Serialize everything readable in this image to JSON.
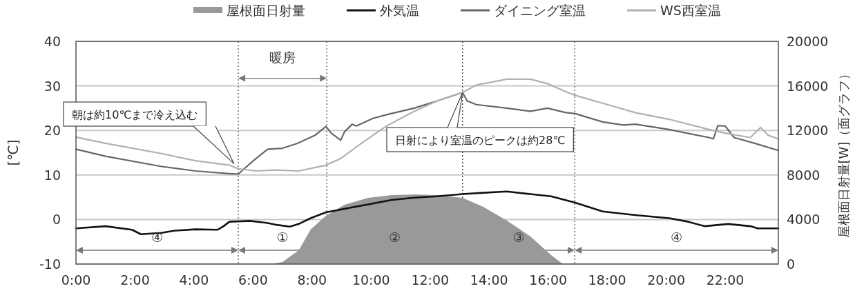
{
  "chart_data": {
    "type": "line",
    "ylabel": "[℃]",
    "y2label": "屋根面日射量[W]（面グラフ）",
    "xlim": [
      0,
      23.8
    ],
    "ylim": [
      -10,
      40
    ],
    "y2lim": [
      0,
      20000
    ],
    "xticks": [
      {
        "value": 0,
        "label": "0:00"
      },
      {
        "value": 2,
        "label": "2:00"
      },
      {
        "value": 4,
        "label": "4:00"
      },
      {
        "value": 6,
        "label": "6:00"
      },
      {
        "value": 8,
        "label": "8:00"
      },
      {
        "value": 10,
        "label": "10:00"
      },
      {
        "value": 12,
        "label": "12:00"
      },
      {
        "value": 14,
        "label": "14:00"
      },
      {
        "value": 16,
        "label": "16:00"
      },
      {
        "value": 18,
        "label": "18:00"
      },
      {
        "value": 20,
        "label": "20:00"
      },
      {
        "value": 22,
        "label": "22:00"
      }
    ],
    "yticks": [
      -10,
      0,
      10,
      20,
      30,
      40
    ],
    "y2ticks": [
      0,
      4000,
      8000,
      12000,
      16000,
      20000
    ],
    "grid": "y",
    "legend": "top",
    "series": [
      {
        "name": "屋根面日射量",
        "type": "area",
        "axis": "y2",
        "color": "#999999",
        "x": [
          6.6,
          7.0,
          7.55,
          7.95,
          8.47,
          9.1,
          9.9,
          10.7,
          11.46,
          12.23,
          13.1,
          13.8,
          14.6,
          15.4,
          16.1,
          16.5
        ],
        "values": [
          0,
          190,
          1240,
          3100,
          4330,
          5330,
          5950,
          6190,
          6250,
          6190,
          5950,
          5140,
          3900,
          2480,
          800,
          0
        ]
      },
      {
        "name": "外気温",
        "color": "#111111",
        "x": [
          0,
          1.0,
          1.9,
          2.2,
          2.9,
          3.35,
          4.05,
          4.8,
          5.0,
          5.2,
          5.9,
          6.5,
          6.8,
          7.25,
          7.55,
          7.95,
          8.47,
          9.1,
          9.9,
          10.7,
          11.46,
          12.23,
          13.1,
          13.8,
          14.6,
          15.4,
          16.1,
          16.9,
          17.85,
          18.95,
          20.1,
          20.75,
          21.3,
          22.1,
          22.85,
          23.1,
          23.8
        ],
        "values": [
          -2.0,
          -1.5,
          -2.3,
          -3.3,
          -3.0,
          -2.5,
          -2.2,
          -2.3,
          -1.5,
          -0.5,
          -0.3,
          -0.8,
          -1.2,
          -1.6,
          -1.0,
          0.3,
          1.6,
          2.4,
          3.4,
          4.4,
          4.9,
          5.2,
          5.7,
          6.0,
          6.3,
          5.7,
          5.2,
          3.8,
          1.8,
          1.0,
          0.3,
          -0.5,
          -1.5,
          -1.0,
          -1.5,
          -2.0,
          -2.0
        ]
      },
      {
        "name": "ダイニング室温",
        "color": "#666666",
        "x": [
          0,
          1.0,
          2.9,
          4.05,
          5.2,
          5.5,
          5.7,
          6.1,
          6.5,
          7.0,
          7.5,
          8.1,
          8.47,
          8.65,
          8.97,
          9.1,
          9.36,
          9.5,
          10.06,
          10.5,
          11.46,
          12.23,
          13.1,
          13.26,
          13.57,
          14.6,
          15.4,
          15.98,
          16.6,
          16.9,
          17.85,
          18.55,
          18.95,
          20.1,
          21.45,
          21.6,
          21.75,
          22.0,
          22.3,
          23.0,
          23.8
        ],
        "values": [
          15.8,
          14.2,
          11.9,
          10.9,
          10.3,
          10.2,
          11.4,
          13.7,
          15.8,
          16.0,
          17.1,
          18.9,
          20.9,
          19.4,
          17.8,
          19.7,
          21.4,
          21.0,
          22.7,
          23.5,
          25.0,
          26.6,
          28.5,
          26.6,
          25.8,
          25.0,
          24.3,
          25.0,
          24.0,
          23.8,
          21.9,
          21.2,
          21.4,
          20.2,
          18.4,
          18.1,
          21.1,
          21.0,
          18.4,
          17.1,
          15.5
        ]
      },
      {
        "name": "WS西室温",
        "color": "#b0b0b0",
        "x": [
          0,
          1.0,
          2.9,
          4.05,
          5.2,
          5.5,
          6.1,
          6.78,
          7.55,
          8.47,
          8.97,
          9.5,
          10.06,
          10.5,
          11.46,
          12.23,
          13.1,
          13.57,
          14.6,
          15.4,
          15.98,
          16.6,
          16.9,
          17.85,
          18.95,
          20.1,
          21.45,
          22.0,
          22.85,
          23.2,
          23.46,
          23.8
        ],
        "values": [
          18.5,
          17.1,
          14.8,
          13.2,
          12.2,
          11.4,
          10.9,
          11.1,
          10.9,
          12.2,
          13.7,
          16.3,
          18.9,
          20.9,
          24.3,
          26.6,
          28.5,
          30.2,
          31.5,
          31.5,
          30.5,
          28.7,
          27.9,
          26.1,
          24.0,
          22.5,
          20.2,
          19.4,
          18.4,
          20.7,
          18.9,
          18.1
        ]
      }
    ],
    "ref_lines": [
      {
        "axis": "x",
        "value": 5.5,
        "color": "#444444",
        "line_style": "dotted"
      },
      {
        "axis": "x",
        "value": 8.5,
        "color": "#444444",
        "line_style": "dotted"
      },
      {
        "axis": "x",
        "value": 13.1,
        "color": "#222222",
        "line_style": "dotted"
      },
      {
        "axis": "x",
        "value": 16.9,
        "color": "#444444",
        "line_style": "dotted"
      }
    ],
    "annotations": [
      "朝は約10℃まで冷え込む",
      {
        "text": "日射により室温のピークは約28℃",
        "x": 13.1,
        "y": 28.5
      },
      "暖房",
      "④",
      "①",
      "②",
      "③",
      "④"
    ]
  }
}
